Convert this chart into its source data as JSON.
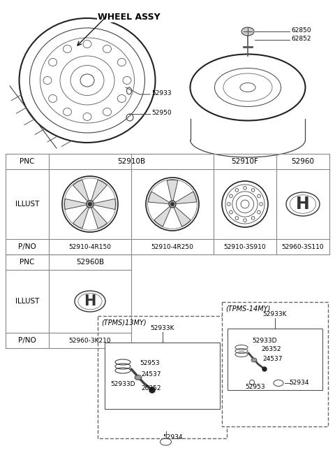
{
  "title": "WHEEL ASSY",
  "bg_color": "#ffffff",
  "text_color": "#000000",
  "line_color": "#444444",
  "table_line_color": "#888888",
  "top_labels": [
    "52933",
    "52950",
    "62850",
    "62852"
  ],
  "pnc_row1": [
    "PNC",
    "52910B",
    "52910F",
    "52960"
  ],
  "pno_row1": [
    "P/NO",
    "52910-4R150",
    "52910-4R250",
    "52910-3S910",
    "52960-3S110"
  ],
  "pnc_row2": [
    "PNC",
    "52960B"
  ],
  "pno_row2": [
    "P/NO",
    "52960-3K210"
  ],
  "tpms13_title": "(TPMS)13MY)",
  "tpms13_parts": [
    "52933K",
    "52953",
    "24537",
    "52933D",
    "26352",
    "52934"
  ],
  "tpms14_title": "(TPMS-14MY)",
  "tpms14_parts": [
    "52933K",
    "52933D",
    "26352",
    "24537",
    "52953",
    "52934"
  ]
}
